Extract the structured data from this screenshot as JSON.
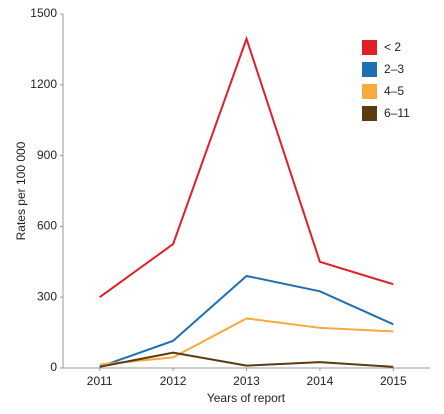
{
  "chart_data": {
    "type": "line",
    "x_label": "Years of report",
    "y_label": "Rates per 100 000",
    "categories": [
      "2011",
      "2012",
      "2013",
      "2014",
      "2015"
    ],
    "ylim": [
      0,
      1500
    ],
    "yticks": [
      0,
      300,
      600,
      900,
      1200,
      1500
    ],
    "legend_position": "upper right",
    "series": [
      {
        "name": "< 2",
        "color": "#e31e24",
        "values": [
          300,
          525,
          1395,
          450,
          355
        ]
      },
      {
        "name": "2–3",
        "color": "#1f6fb4",
        "values": [
          5,
          115,
          390,
          325,
          185
        ]
      },
      {
        "name": "4–5",
        "color": "#f7ab3c",
        "values": [
          15,
          45,
          210,
          170,
          155
        ]
      },
      {
        "name": "6–11",
        "color": "#5c3a13",
        "values": [
          5,
          65,
          10,
          25,
          5
        ]
      }
    ]
  }
}
